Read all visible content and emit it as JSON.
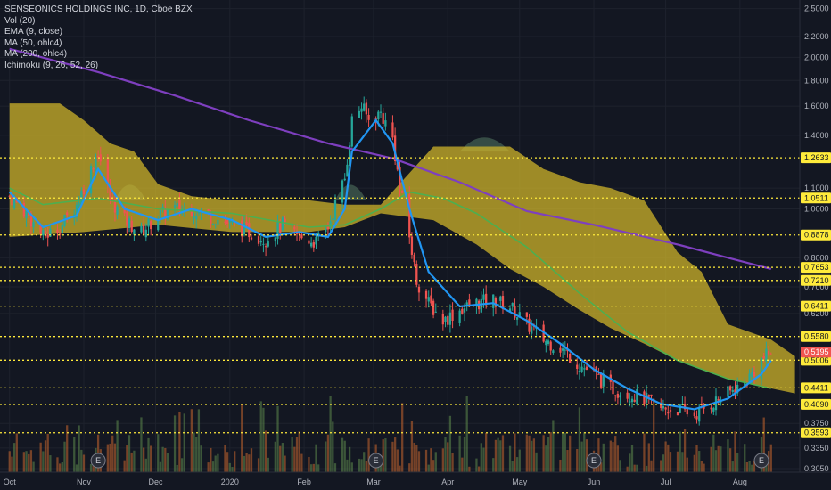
{
  "legend": {
    "title": "SENSEONICS HOLDINGS INC, 1D, Cboe BZX",
    "indicators": [
      "Vol (20)",
      "EMA (9, close)",
      "MA (50, ohlc4)",
      "MA (200, ohlc4)",
      "Ichimoku (9, 26, 52, 26)"
    ]
  },
  "colors": {
    "background": "#131722",
    "cloud_yellow": "#d4b92a",
    "cloud_orange": "#c9a232",
    "cloud_green": "#3b5249",
    "candle_up": "#26a69a",
    "candle_down": "#ef5350",
    "ema9": "#2196f3",
    "ma50": "#4caf50",
    "ma200": "#7e3fbf",
    "level_line": "#ffeb3b",
    "last_price": "#ef5350",
    "vol_up": "#5e8a4d",
    "vol_down": "#c8662e"
  },
  "chart_data": {
    "type": "candlestick",
    "title": "SENSEONICS HOLDINGS INC, 1D, Cboe BZX",
    "y_scale": "log",
    "ylim": [
      0.3,
      2.6
    ],
    "x_months": [
      "Oct",
      "Nov",
      "Dec",
      "2020",
      "Feb",
      "Mar",
      "Apr",
      "May",
      "Jun",
      "Jul",
      "Aug"
    ],
    "y_ticks": [
      "2.5000",
      "2.2000",
      "2.0000",
      "1.8000",
      "1.6000",
      "1.4000",
      "1.1000",
      "1.0000",
      "0.8000",
      "0.7000",
      "0.6200",
      "0.3750",
      "0.3350",
      "0.3050"
    ],
    "horizontal_levels": [
      "1.2633",
      "1.0511",
      "0.8878",
      "0.7653",
      "0.7210",
      "0.6411",
      "0.5580",
      "0.5006",
      "0.4411",
      "0.4090",
      "0.3593"
    ],
    "last_price": "0.5195",
    "earnings_markers": [
      {
        "label": "E",
        "date": "2019-11-07"
      },
      {
        "label": "E",
        "date": "2020-03-02"
      },
      {
        "label": "E",
        "date": "2020-06-01"
      },
      {
        "label": "E",
        "date": "2020-08-10"
      }
    ],
    "price_path": [
      [
        "2019-10-01",
        1.06
      ],
      [
        "2019-10-08",
        0.98
      ],
      [
        "2019-10-15",
        0.88
      ],
      [
        "2019-10-22",
        0.92
      ],
      [
        "2019-10-29",
        1.02
      ],
      [
        "2019-11-04",
        1.2
      ],
      [
        "2019-11-07",
        1.3
      ],
      [
        "2019-11-12",
        1.05
      ],
      [
        "2019-11-18",
        0.95
      ],
      [
        "2019-11-25",
        0.9
      ],
      [
        "2019-12-02",
        0.97
      ],
      [
        "2019-12-09",
        1.0
      ],
      [
        "2019-12-16",
        1.0
      ],
      [
        "2019-12-23",
        0.97
      ],
      [
        "2020-01-02",
        0.93
      ],
      [
        "2020-01-09",
        0.9
      ],
      [
        "2020-01-16",
        0.87
      ],
      [
        "2020-01-23",
        0.93
      ],
      [
        "2020-01-30",
        0.88
      ],
      [
        "2020-02-06",
        0.86
      ],
      [
        "2020-02-11",
        0.92
      ],
      [
        "2020-02-14",
        1.02
      ],
      [
        "2020-02-18",
        1.15
      ],
      [
        "2020-02-21",
        1.5
      ],
      [
        "2020-02-25",
        1.6
      ],
      [
        "2020-02-28",
        1.5
      ],
      [
        "2020-03-04",
        1.55
      ],
      [
        "2020-03-09",
        1.38
      ],
      [
        "2020-03-12",
        1.1
      ],
      [
        "2020-03-16",
        0.88
      ],
      [
        "2020-03-19",
        0.72
      ],
      [
        "2020-03-24",
        0.65
      ],
      [
        "2020-03-30",
        0.6
      ],
      [
        "2020-04-06",
        0.63
      ],
      [
        "2020-04-13",
        0.65
      ],
      [
        "2020-04-20",
        0.66
      ],
      [
        "2020-04-27",
        0.64
      ],
      [
        "2020-05-04",
        0.59
      ],
      [
        "2020-05-11",
        0.55
      ],
      [
        "2020-05-18",
        0.53
      ],
      [
        "2020-05-26",
        0.49
      ],
      [
        "2020-06-01",
        0.47
      ],
      [
        "2020-06-08",
        0.44
      ],
      [
        "2020-06-15",
        0.43
      ],
      [
        "2020-06-22",
        0.42
      ],
      [
        "2020-06-29",
        0.4
      ],
      [
        "2020-07-06",
        0.4
      ],
      [
        "2020-07-13",
        0.39
      ],
      [
        "2020-07-20",
        0.41
      ],
      [
        "2020-07-27",
        0.43
      ],
      [
        "2020-08-03",
        0.45
      ],
      [
        "2020-08-10",
        0.5
      ],
      [
        "2020-08-14",
        0.52
      ]
    ],
    "ema9": [
      [
        "2019-10-01",
        1.08
      ],
      [
        "2019-10-15",
        0.92
      ],
      [
        "2019-10-29",
        0.97
      ],
      [
        "2019-11-07",
        1.2
      ],
      [
        "2019-11-18",
        1.0
      ],
      [
        "2019-12-02",
        0.95
      ],
      [
        "2019-12-16",
        1.0
      ],
      [
        "2020-01-02",
        0.95
      ],
      [
        "2020-01-16",
        0.88
      ],
      [
        "2020-01-30",
        0.9
      ],
      [
        "2020-02-11",
        0.88
      ],
      [
        "2020-02-18",
        1.0
      ],
      [
        "2020-02-21",
        1.3
      ],
      [
        "2020-03-02",
        1.5
      ],
      [
        "2020-03-09",
        1.35
      ],
      [
        "2020-03-16",
        1.0
      ],
      [
        "2020-03-24",
        0.75
      ],
      [
        "2020-04-06",
        0.64
      ],
      [
        "2020-04-20",
        0.65
      ],
      [
        "2020-05-04",
        0.6
      ],
      [
        "2020-05-18",
        0.54
      ],
      [
        "2020-06-01",
        0.48
      ],
      [
        "2020-06-15",
        0.44
      ],
      [
        "2020-06-29",
        0.41
      ],
      [
        "2020-07-13",
        0.4
      ],
      [
        "2020-07-27",
        0.42
      ],
      [
        "2020-08-10",
        0.47
      ],
      [
        "2020-08-14",
        0.5
      ]
    ],
    "ma50": [
      [
        "2019-10-01",
        1.1
      ],
      [
        "2019-10-15",
        1.02
      ],
      [
        "2019-11-07",
        1.05
      ],
      [
        "2019-12-02",
        1.0
      ],
      [
        "2020-01-02",
        0.98
      ],
      [
        "2020-02-03",
        0.92
      ],
      [
        "2020-02-18",
        0.93
      ],
      [
        "2020-03-04",
        1.0
      ],
      [
        "2020-03-16",
        1.08
      ],
      [
        "2020-03-30",
        1.05
      ],
      [
        "2020-04-13",
        0.98
      ],
      [
        "2020-05-04",
        0.84
      ],
      [
        "2020-05-26",
        0.68
      ],
      [
        "2020-06-15",
        0.57
      ],
      [
        "2020-07-06",
        0.5
      ],
      [
        "2020-07-27",
        0.46
      ],
      [
        "2020-08-14",
        0.44
      ]
    ],
    "ma200": [
      [
        "2019-10-01",
        2.08
      ],
      [
        "2019-11-07",
        1.87
      ],
      [
        "2019-12-09",
        1.68
      ],
      [
        "2020-01-09",
        1.5
      ],
      [
        "2020-02-11",
        1.35
      ],
      [
        "2020-03-09",
        1.26
      ],
      [
        "2020-04-06",
        1.13
      ],
      [
        "2020-05-04",
        0.99
      ],
      [
        "2020-06-01",
        0.93
      ],
      [
        "2020-07-06",
        0.85
      ],
      [
        "2020-07-27",
        0.8
      ],
      [
        "2020-08-14",
        0.76
      ]
    ],
    "cloud_upper": [
      [
        "2019-10-01",
        1.62
      ],
      [
        "2019-10-22",
        1.62
      ],
      [
        "2019-11-01",
        1.5
      ],
      [
        "2019-11-12",
        1.35
      ],
      [
        "2019-11-22",
        1.3
      ],
      [
        "2019-12-02",
        1.12
      ],
      [
        "2019-12-16",
        1.06
      ],
      [
        "2020-01-02",
        1.04
      ],
      [
        "2020-02-03",
        1.04
      ],
      [
        "2020-02-18",
        1.02
      ],
      [
        "2020-03-04",
        1.02
      ],
      [
        "2020-03-26",
        1.33
      ],
      [
        "2020-04-13",
        1.33
      ],
      [
        "2020-04-27",
        1.33
      ],
      [
        "2020-05-11",
        1.2
      ],
      [
        "2020-05-26",
        1.13
      ],
      [
        "2020-06-08",
        1.1
      ],
      [
        "2020-06-22",
        1.04
      ],
      [
        "2020-07-06",
        0.82
      ],
      [
        "2020-07-16",
        0.75
      ],
      [
        "2020-07-27",
        0.59
      ],
      [
        "2020-08-14",
        0.55
      ],
      [
        "2020-08-24",
        0.51
      ]
    ],
    "cloud_lower": [
      [
        "2019-10-01",
        0.88
      ],
      [
        "2019-11-01",
        0.9
      ],
      [
        "2019-12-02",
        0.93
      ],
      [
        "2020-01-02",
        0.9
      ],
      [
        "2020-02-03",
        0.9
      ],
      [
        "2020-02-18",
        0.92
      ],
      [
        "2020-03-04",
        0.98
      ],
      [
        "2020-03-26",
        0.95
      ],
      [
        "2020-04-13",
        0.85
      ],
      [
        "2020-04-27",
        0.76
      ],
      [
        "2020-05-11",
        0.7
      ],
      [
        "2020-05-26",
        0.63
      ],
      [
        "2020-06-08",
        0.58
      ],
      [
        "2020-06-22",
        0.54
      ],
      [
        "2020-07-06",
        0.5
      ],
      [
        "2020-07-27",
        0.46
      ],
      [
        "2020-08-14",
        0.44
      ],
      [
        "2020-08-24",
        0.43
      ]
    ]
  }
}
